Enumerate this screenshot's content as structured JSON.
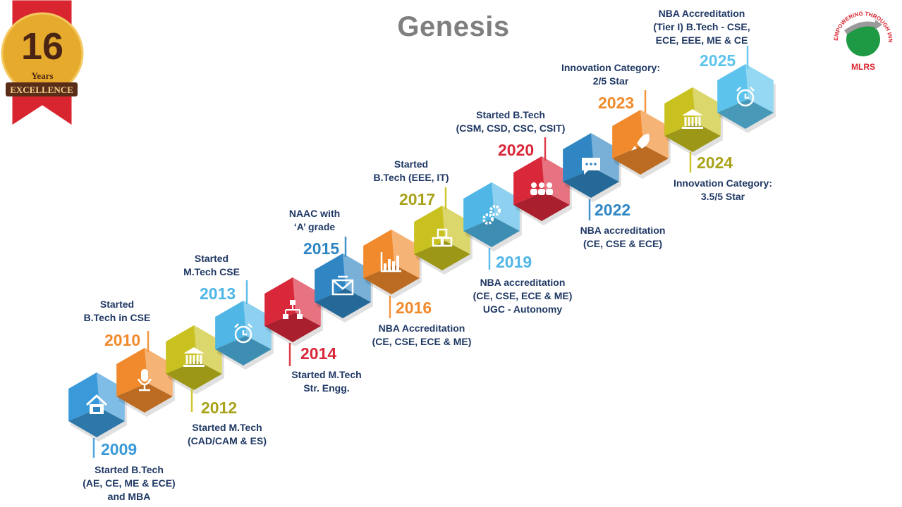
{
  "title": "Genesis",
  "badge": {
    "number": "16",
    "line1": "Years",
    "line2": "EXCELLENCE"
  },
  "logo": {
    "tagline": "EMPOWERING THROUGH INNOVATIONS",
    "name": "MLRS"
  },
  "milestones": [
    {
      "year": "2009",
      "lines": [
        "Started B.Tech",
        "(AE, CE, ME & ECE)",
        "and MBA"
      ],
      "color": "#3a9ad9",
      "icon": "house-briefcase-icon"
    },
    {
      "year": "2010",
      "lines": [
        "Started",
        "B.Tech in CSE"
      ],
      "color": "#f08a2c",
      "icon": "microphone-icon"
    },
    {
      "year": "2012",
      "lines": [
        "Started M.Tech",
        "(CAD/CAM & ES)"
      ],
      "color": "#c9c11f",
      "icon": "bank-icon"
    },
    {
      "year": "2013",
      "lines": [
        "Started",
        "M.Tech CSE"
      ],
      "color": "#4fb6e6",
      "icon": "alarm-clock-icon"
    },
    {
      "year": "2014",
      "lines": [
        "Started M.Tech",
        "Str. Engg."
      ],
      "color": "#d9283a",
      "icon": "flowchart-icon"
    },
    {
      "year": "2015",
      "lines": [
        "NAAC with",
        "‘A’ grade"
      ],
      "color": "#2f86c3",
      "icon": "envelope-icon"
    },
    {
      "year": "2016",
      "lines": [
        "NBA Accreditation",
        "(CE, CSE, ECE & ME)"
      ],
      "color": "#f08a2c",
      "icon": "bar-chart-icon"
    },
    {
      "year": "2017",
      "lines": [
        "Started",
        "B.Tech (EEE, IT)"
      ],
      "color": "#c9c11f",
      "icon": "boxes-icon"
    },
    {
      "year": "2019",
      "lines": [
        "NBA accreditation",
        "(CE, CSE, ECE & ME)",
        "UGC - Autonomy"
      ],
      "color": "#4fb6e6",
      "icon": "gears-icon"
    },
    {
      "year": "2020",
      "lines": [
        "Started B.Tech",
        "(CSM, CSD, CSC, CSIT)"
      ],
      "color": "#d9283a",
      "icon": "people-icon"
    },
    {
      "year": "2022",
      "lines": [
        "NBA accreditation",
        "(CE, CSE & ECE)"
      ],
      "color": "#2f86c3",
      "icon": "chat-bubble-icon"
    },
    {
      "year": "2023",
      "lines": [
        "Innovation Category:",
        "2/5 Star"
      ],
      "color": "#f08a2c",
      "icon": "rocket-icon"
    },
    {
      "year": "2024",
      "lines": [
        "Innovation Category:",
        "3.5/5 Star"
      ],
      "color": "#c9c11f",
      "icon": "bank-icon"
    },
    {
      "year": "2025",
      "lines": [
        "NBA Accreditation",
        "(Tier I) B.Tech - CSE,",
        "ECE, EEE, ME & CE"
      ],
      "color": "#5cc3ec",
      "icon": "alarm-clock-icon"
    }
  ],
  "colors": {
    "text": "#1f3864",
    "title": "#7f7f7f",
    "ribbon": "#d9252f",
    "medal": "#e6ab2c",
    "brown": "#5a2d18",
    "logo_green": "#1e9a45"
  }
}
